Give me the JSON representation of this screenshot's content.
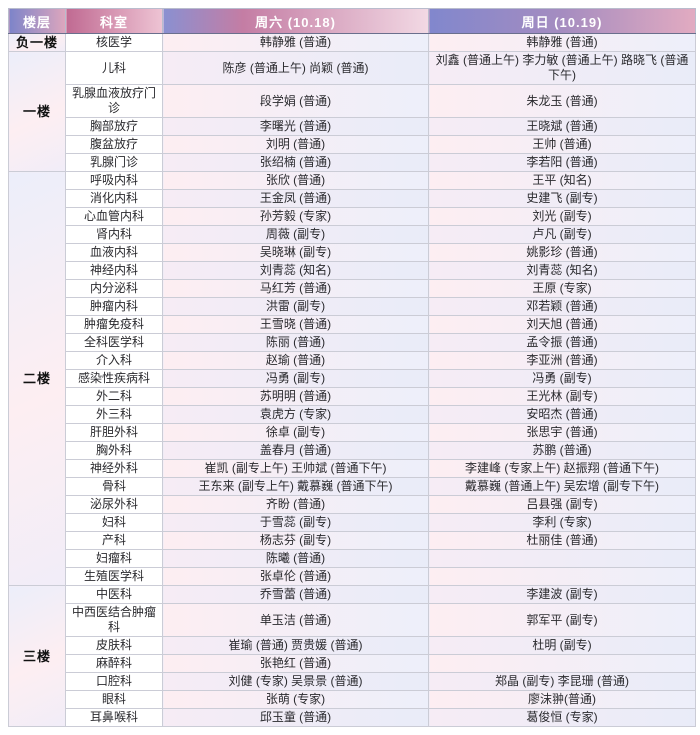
{
  "colors": {
    "header_left": "#7d84c9",
    "header_pink": "#dda6bd",
    "row_pink": "#fdeef2",
    "row_lavender": "#edeffa",
    "border": "#cbccd6"
  },
  "table": {
    "headers": {
      "floor": "楼层",
      "dept": "科室",
      "sat": "周六 (10.18)",
      "sun": "周日 (10.19)"
    },
    "floors": [
      {
        "name": "负一楼",
        "rows": [
          {
            "dept": "核医学",
            "sat": "韩静雅 (普通)",
            "sun": "韩静雅 (普通)"
          }
        ]
      },
      {
        "name": "一楼",
        "rows": [
          {
            "dept": "儿科",
            "sat": "陈彦 (普通上午) 尚颖 (普通)",
            "sun": "刘鑫 (普通上午) 李力敏 (普通上午) 路晓飞 (普通下午)"
          },
          {
            "dept": "乳腺血液放疗门诊",
            "sat": "段学娟 (普通)",
            "sun": "朱龙玉 (普通)"
          },
          {
            "dept": "胸部放疗",
            "sat": "李曙光 (普通)",
            "sun": "王晓斌 (普通)"
          },
          {
            "dept": "腹盆放疗",
            "sat": "刘明 (普通)",
            "sun": "王帅 (普通)"
          },
          {
            "dept": "乳腺门诊",
            "sat": "张绍楠 (普通)",
            "sun": "李若阳 (普通)"
          }
        ]
      },
      {
        "name": "二楼",
        "rows": [
          {
            "dept": "呼吸内科",
            "sat": "张欣 (普通)",
            "sun": "王平 (知名)"
          },
          {
            "dept": "消化内科",
            "sat": "王金凤 (普通)",
            "sun": "史建飞 (副专)"
          },
          {
            "dept": "心血管内科",
            "sat": "孙芳毅 (专家)",
            "sun": "刘光 (副专)"
          },
          {
            "dept": "肾内科",
            "sat": "周薇 (副专)",
            "sun": "卢凡 (副专)"
          },
          {
            "dept": "血液内科",
            "sat": "吴晓琳 (副专)",
            "sun": "姚影珍 (普通)"
          },
          {
            "dept": "神经内科",
            "sat": "刘青蕊 (知名)",
            "sun": "刘青蕊 (知名)"
          },
          {
            "dept": "内分泌科",
            "sat": "马红芳 (普通)",
            "sun": "王原 (专家)"
          },
          {
            "dept": "肿瘤内科",
            "sat": "洪雷 (副专)",
            "sun": "邓若颖 (普通)"
          },
          {
            "dept": "肿瘤免疫科",
            "sat": "王雪晓 (普通)",
            "sun": "刘天旭 (普通)"
          },
          {
            "dept": "全科医学科",
            "sat": "陈丽 (普通)",
            "sun": "孟令振 (普通)"
          },
          {
            "dept": "介入科",
            "sat": "赵瑜 (普通)",
            "sun": "李亚洲 (普通)"
          },
          {
            "dept": "感染性疾病科",
            "sat": "冯勇 (副专)",
            "sun": "冯勇 (副专)"
          },
          {
            "dept": "外二科",
            "sat": "苏明明 (普通)",
            "sun": "王光林 (副专)"
          },
          {
            "dept": "外三科",
            "sat": "袁虎方 (专家)",
            "sun": "安昭杰 (普通)"
          },
          {
            "dept": "肝胆外科",
            "sat": "徐卓 (副专)",
            "sun": "张思宇 (普通)"
          },
          {
            "dept": "胸外科",
            "sat": "盖春月 (普通)",
            "sun": "苏鹏 (普通)"
          },
          {
            "dept": "神经外科",
            "sat": "崔凯 (副专上午) 王帅斌 (普通下午)",
            "sun": "李建峰 (专家上午) 赵振翔 (普通下午)"
          },
          {
            "dept": "骨科",
            "sat": "王东来 (副专上午) 戴慕巍 (普通下午)",
            "sun": "戴慕巍 (普通上午) 吴宏增 (副专下午)"
          },
          {
            "dept": "泌尿外科",
            "sat": "齐盼 (普通)",
            "sun": "吕县强 (副专)"
          },
          {
            "dept": "妇科",
            "sat": "于雪蕊 (副专)",
            "sun": "李利 (专家)"
          },
          {
            "dept": "产科",
            "sat": "杨志芬 (副专)",
            "sun": "杜丽佳 (普通)"
          },
          {
            "dept": "妇瘤科",
            "sat": "陈曦 (普通)",
            "sun": ""
          },
          {
            "dept": "生殖医学科",
            "sat": "张卓伦 (普通)",
            "sun": ""
          }
        ]
      },
      {
        "name": "三楼",
        "rows": [
          {
            "dept": "中医科",
            "sat": "乔雪蕾 (普通)",
            "sun": "李建波 (副专)"
          },
          {
            "dept": "中西医结合肿瘤科",
            "sat": "单玉洁 (普通)",
            "sun": "郭军平 (副专)"
          },
          {
            "dept": "皮肤科",
            "sat": "崔瑜 (普通) 贾贵媛 (普通)",
            "sun": "杜明 (副专)"
          },
          {
            "dept": "麻醉科",
            "sat": "张艳红 (普通)",
            "sun": ""
          },
          {
            "dept": "口腔科",
            "sat": "刘健 (专家) 吴景景 (普通)",
            "sun": "郑晶 (副专) 李昆珊 (普通)"
          },
          {
            "dept": "眼科",
            "sat": "张萌 (专家)",
            "sun": "廖沫翀(普通)"
          },
          {
            "dept": "耳鼻喉科",
            "sat": "邱玉童 (普通)",
            "sun": "葛俊恒 (专家)"
          }
        ]
      }
    ]
  }
}
